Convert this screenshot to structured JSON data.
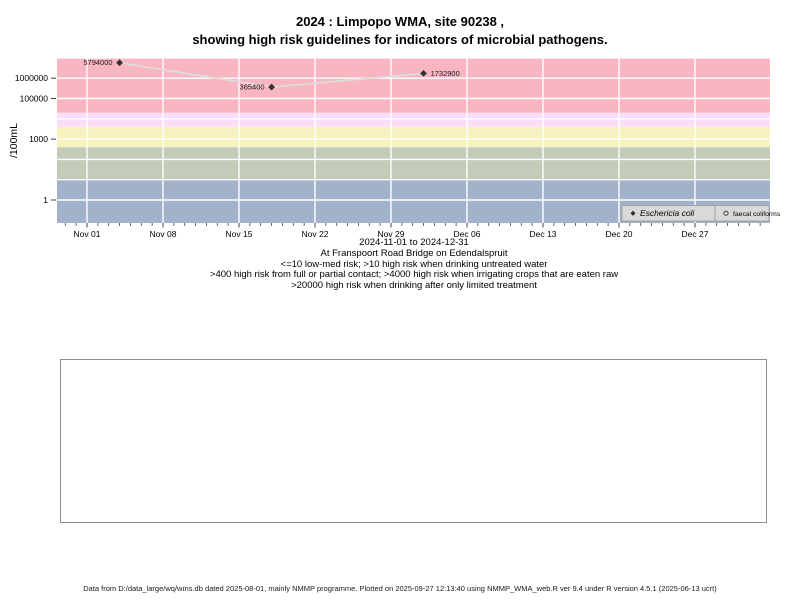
{
  "title": {
    "line1": "2024 : Limpopo WMA, site 90238 ,",
    "line2": "showing high risk guidelines for indicators of microbial pathogens."
  },
  "chart_data": {
    "type": "line",
    "ylabel": "/100mL",
    "ylim": [
      0.07,
      10000000
    ],
    "y_scale": "log",
    "x_start": "2024-11-01",
    "x_end": "2024-12-31",
    "x_range_label": "2024-11-01 to 2024-12-31",
    "x_tick_labels": [
      "Nov 01",
      "Nov 08",
      "Nov 15",
      "Nov 22",
      "Nov 29",
      "Dec 06",
      "Dec 13",
      "Dec 20",
      "Dec 27"
    ],
    "y_ticks": [
      {
        "value": 1,
        "label": "1"
      },
      {
        "value": 1000,
        "label": "1000"
      },
      {
        "value": 100000,
        "label": "100000"
      },
      {
        "value": 1000000,
        "label": "1000000"
      }
    ],
    "grid": "white lines, weekly vertical, decade horizontal",
    "legend_position": "bottom-right inside plot",
    "line_color": "#dcdcdc",
    "marker_color": "#333333",
    "series": [
      {
        "name": "Eschericia coli",
        "marker": "diamond-filled",
        "points": [
          {
            "date": "2024-11-04",
            "value": 5794000,
            "label": "5794000",
            "label_side": "left"
          },
          {
            "date": "2024-11-18",
            "value": 365400,
            "label": "365400",
            "label_side": "left"
          },
          {
            "date": "2024-12-02",
            "value": 1732900,
            "label": "1732900",
            "label_side": "right"
          }
        ]
      },
      {
        "name": "faecal coliforms",
        "marker": "circle-open",
        "points": []
      }
    ],
    "risk_bands": [
      {
        "label": "<=10 low-med risk",
        "from": 0.07,
        "to": 10,
        "color": "#a2b2cb"
      },
      {
        "label": ">10 high risk when drinking untreated water",
        "from": 10,
        "to": 400,
        "color": "#c3ccb8"
      },
      {
        "label": ">400 high risk from full or partial contact",
        "from": 400,
        "to": 4000,
        "color": "#f7f2bf"
      },
      {
        "label": ">4000 high risk when irrigating crops that are eaten raw",
        "from": 4000,
        "to": 20000,
        "color": "#fadef9"
      },
      {
        "label": ">20000 high risk when drinking after only limited treatment",
        "from": 20000,
        "to": 10000000,
        "color": "#f9b5c1"
      }
    ]
  },
  "legend": {
    "items": [
      {
        "marker": "diamond-filled",
        "label": "Eschericia coli",
        "italic": true
      },
      {
        "marker": "circle-open",
        "label": "faecal coliforms",
        "italic": false
      }
    ]
  },
  "caption": {
    "location": "At Franspoort Road Bridge on Edendalspruit",
    "guideline1": "<=10 low-med risk; >10 high risk when drinking untreated water",
    "guideline2": ">400 high risk from full or partial contact; >4000 high risk when irrigating crops that are eaten raw",
    "guideline3": ">20000 high risk when drinking after only limited treatment"
  },
  "footer": {
    "text": "Data from D:/data_large/wq/wms.db dated 2025-08-01, mainly NMMP programme. Plotted on 2025-09-27 12:13:40 using NMMP_WMA_web.R ver 9.4 under R version 4.5.1 (2025-06-13 ucrt)"
  }
}
